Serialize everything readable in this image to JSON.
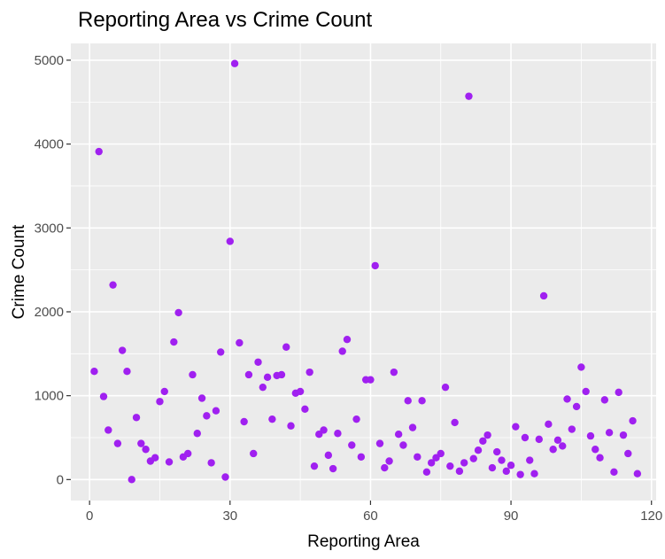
{
  "chart_data": {
    "type": "scatter",
    "title": "Reporting Area vs Crime Count",
    "xlabel": "Reporting Area",
    "ylabel": "Crime Count",
    "xlim": [
      -4,
      121
    ],
    "ylim": [
      -250,
      5200
    ],
    "x_ticks": [
      0,
      30,
      60,
      90,
      120
    ],
    "y_ticks": [
      0,
      1000,
      2000,
      3000,
      4000,
      5000
    ],
    "x_tick_labels": [
      "0",
      "30",
      "60",
      "90",
      "120"
    ],
    "y_tick_labels": [
      "0",
      "1000",
      "2000",
      "3000",
      "4000",
      "5000"
    ],
    "grid": true,
    "colors": {
      "panel_background": "#ebebeb",
      "grid": "#ffffff",
      "point": "#a020f0",
      "tick_label": "#4d4d4d",
      "tick_mark": "#333333"
    },
    "series": [
      {
        "x": [
          1,
          2,
          3,
          4,
          5,
          6,
          7,
          8,
          9,
          10,
          11,
          12,
          13,
          14,
          15,
          16,
          17,
          18,
          19,
          20,
          21,
          22,
          23,
          24,
          25,
          26,
          27,
          28,
          29,
          30,
          31,
          32,
          33,
          34,
          35,
          36,
          37,
          38,
          39,
          40,
          41,
          42,
          43,
          44,
          45,
          46,
          47,
          48,
          49,
          50,
          51,
          52,
          53,
          54,
          55,
          56,
          57,
          58,
          59,
          60,
          61,
          62,
          63,
          64,
          65,
          66,
          67,
          68,
          69,
          70,
          71,
          72,
          73,
          74,
          75,
          76,
          77,
          78,
          79,
          80,
          81,
          82,
          83,
          84,
          85,
          86,
          87,
          88,
          89,
          90,
          91,
          92,
          93,
          94,
          95,
          96,
          97,
          98,
          99,
          100,
          101,
          102,
          103,
          104,
          105,
          106,
          107,
          108,
          109,
          110,
          111,
          112,
          113,
          114,
          115,
          116,
          117
        ],
        "y": [
          1290,
          3910,
          990,
          590,
          2320,
          430,
          1540,
          1290,
          0,
          740,
          430,
          360,
          220,
          260,
          930,
          1050,
          210,
          1640,
          1990,
          270,
          310,
          1250,
          550,
          970,
          760,
          200,
          820,
          1520,
          30,
          2840,
          4960,
          1630,
          690,
          1250,
          310,
          1400,
          1100,
          1220,
          720,
          1240,
          1250,
          1580,
          640,
          1030,
          1050,
          840,
          1280,
          160,
          540,
          590,
          290,
          130,
          550,
          1530,
          1670,
          410,
          720,
          270,
          1190,
          1190,
          2550,
          430,
          140,
          220,
          1280,
          540,
          410,
          940,
          620,
          270,
          940,
          90,
          200,
          260,
          310,
          1100,
          160,
          680,
          100,
          200,
          4570,
          250,
          350,
          460,
          530,
          140,
          330,
          230,
          100,
          170,
          630,
          60,
          500,
          230,
          70,
          480,
          2190,
          660,
          360,
          470,
          400,
          960,
          600,
          870,
          1340,
          1050,
          520,
          360,
          260,
          950,
          560,
          90,
          1040,
          530,
          310,
          700,
          70
        ]
      }
    ]
  }
}
